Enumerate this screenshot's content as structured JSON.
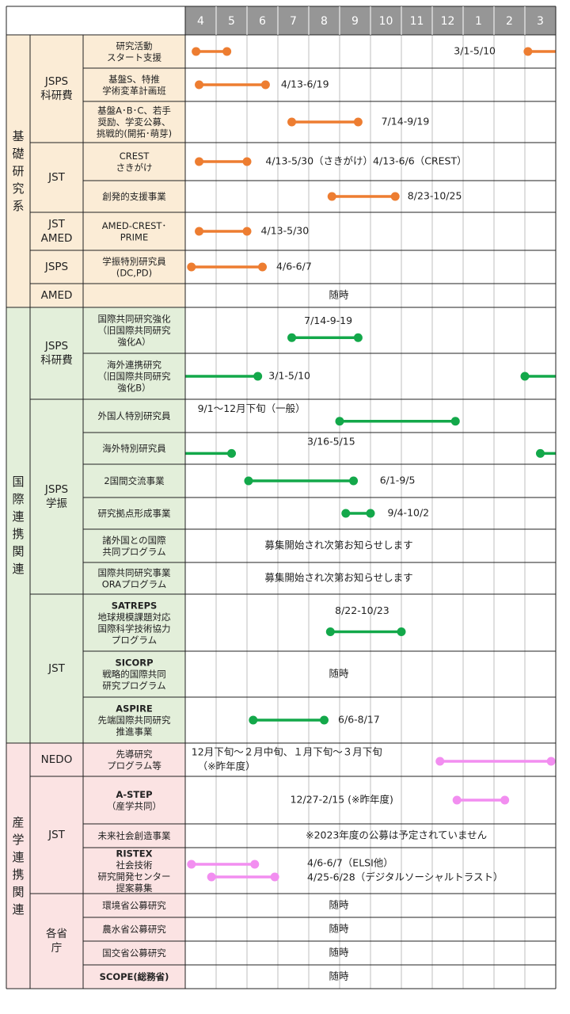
{
  "chart_data": {
    "type": "gantt",
    "months": [
      "4",
      "5",
      "6",
      "7",
      "8",
      "9",
      "10",
      "11",
      "12",
      "1",
      "2",
      "3"
    ],
    "colors": {
      "basic_bg": "#fbecd6",
      "intl_bg": "#e3efda",
      "industry_bg": "#fbe3e3",
      "header_bg": "#969696",
      "basic_bar": "#ed7d31",
      "intl_bar": "#13a84a",
      "industry_bar": "#f28ef0",
      "grid": "#bfbfbf",
      "border": "#222222"
    },
    "sections": [
      {
        "id": "basic",
        "label": "基礎研究系",
        "color": "basic",
        "groups": [
          {
            "label": "JSPS\n科研費",
            "rows": [
              {
                "label": "研究活動\nスタート支援",
                "bars": [
                  {
                    "start": 0.35,
                    "end": 1.35
                  },
                  {
                    "start": 11.1,
                    "end": 12.0
                  }
                ],
                "notes": [
                  {
                    "text": "3/1-5/10",
                    "at": 8.7
                  }
                ]
              },
              {
                "label": "基盤S、特推\n学術変革計画班",
                "bars": [
                  {
                    "start": 0.45,
                    "end": 2.6
                  }
                ],
                "notes": [
                  {
                    "text": "4/13-6/19",
                    "at": 3.1
                  }
                ]
              },
              {
                "label": "基盤A･B･C、若手\n奨励、学変公募、\n挑戦的(開拓･萌芽)",
                "bars": [
                  {
                    "start": 3.45,
                    "end": 5.6
                  }
                ],
                "notes": [
                  {
                    "text": "7/14-9/19",
                    "at": 6.35
                  }
                ]
              }
            ]
          },
          {
            "label": "JST",
            "rows": [
              {
                "label": "CREST\nさきがけ",
                "bars": [
                  {
                    "start": 0.45,
                    "end": 2.0
                  }
                ],
                "notes": [
                  {
                    "text": "4/13-5/30（さきがけ）4/13-6/6（CREST）",
                    "at": 2.6
                  }
                ]
              },
              {
                "label": "創発的支援事業",
                "bars": [
                  {
                    "start": 4.75,
                    "end": 6.8
                  }
                ],
                "notes": [
                  {
                    "text": "8/23-10/25",
                    "at": 7.2
                  }
                ]
              }
            ]
          },
          {
            "label": "JST\nAMED",
            "rows": [
              {
                "label": "AMED-CREST･\nPRIME",
                "bars": [
                  {
                    "start": 0.45,
                    "end": 2.0
                  }
                ],
                "notes": [
                  {
                    "text": "4/13-5/30",
                    "at": 2.45
                  }
                ]
              }
            ]
          },
          {
            "label": "JSPS",
            "rows": [
              {
                "label": "学振特別研究員\n(DC,PD)",
                "bars": [
                  {
                    "start": 0.2,
                    "end": 2.5
                  }
                ],
                "notes": [
                  {
                    "text": "4/6-6/7",
                    "at": 2.95
                  }
                ]
              }
            ]
          },
          {
            "label": "AMED",
            "rows": [
              {
                "label": "AMED",
                "bars": [],
                "notes": [
                  {
                    "text": "随時",
                    "center": true
                  }
                ],
                "nolabel": true
              }
            ]
          }
        ]
      },
      {
        "id": "intl",
        "label": "国際連携関連",
        "color": "intl",
        "groups": [
          {
            "label": "JSPS\n科研費",
            "rows": [
              {
                "label": "国際共同研究強化\n（旧国際共同研究\n強化A）",
                "bars": [
                  {
                    "start": 3.45,
                    "end": 5.6
                  }
                ],
                "notes": [
                  {
                    "text": "7/14-9-19",
                    "at": 3.85,
                    "above": true
                  }
                ]
              },
              {
                "label": "海外連携研究\n（旧国際共同研究\n強化B）",
                "bars": [
                  {
                    "start": 0.0,
                    "end": 2.35
                  },
                  {
                    "start": 11.0,
                    "end": 12.0
                  }
                ],
                "notes": [
                  {
                    "text": "3/1-5/10",
                    "at": 2.7
                  }
                ]
              }
            ]
          },
          {
            "label": "JSPS\n学振",
            "rows": [
              {
                "label": "外国人特別研究員",
                "bars": [
                  {
                    "start": 5.0,
                    "end": 8.75
                  }
                ],
                "notes": [
                  {
                    "text": "9/1～12月下旬（一般）",
                    "at": 0.4,
                    "above": true
                  }
                ]
              },
              {
                "label": "海外特別研究員",
                "bars": [
                  {
                    "start": 0.0,
                    "end": 1.5
                  },
                  {
                    "start": 11.5,
                    "end": 12.0
                  }
                ],
                "notes": [
                  {
                    "text": "3/16-5/15",
                    "at": 3.95,
                    "above": true
                  }
                ]
              },
              {
                "label": "2国間交流事業",
                "bars": [
                  {
                    "start": 2.05,
                    "end": 5.45
                  }
                ],
                "notes": [
                  {
                    "text": "6/1-9/5",
                    "at": 6.3
                  }
                ]
              },
              {
                "label": "研究拠点形成事業",
                "bars": [
                  {
                    "start": 5.2,
                    "end": 6.0
                  }
                ],
                "notes": [
                  {
                    "text": "9/4-10/2",
                    "at": 6.55
                  }
                ]
              },
              {
                "label": "諸外国との国際\n共同プログラム",
                "bars": [],
                "notes": [
                  {
                    "text": "募集開始され次第お知らせします",
                    "center": true
                  }
                ]
              },
              {
                "label": "国際共同研究事業\nORAプログラム",
                "bars": [],
                "notes": [
                  {
                    "text": "募集開始され次第お知らせします",
                    "center": true
                  }
                ]
              }
            ]
          },
          {
            "label": "JST",
            "rows": [
              {
                "label": "SATREPS\n地球規模課題対応\n国際科学技術協力\nプログラム",
                "bars": [
                  {
                    "start": 4.7,
                    "end": 7.0
                  }
                ],
                "notes": [
                  {
                    "text": "8/22-10/23",
                    "at": 4.85,
                    "above": true
                  }
                ],
                "bold_first": true
              },
              {
                "label": "SICORP\n戦略的国際共同\n研究プログラム",
                "bars": [],
                "notes": [
                  {
                    "text": "随時",
                    "center": true
                  }
                ],
                "bold_first": true
              },
              {
                "label": "ASPIRE\n先端国際共同研究\n推進事業",
                "bars": [
                  {
                    "start": 2.2,
                    "end": 4.5
                  }
                ],
                "notes": [
                  {
                    "text": "6/6-8/17",
                    "at": 4.95
                  }
                ],
                "bold_first": true
              }
            ]
          }
        ]
      },
      {
        "id": "industry",
        "label": "産学連携関連",
        "color": "industry",
        "groups": [
          {
            "label": "NEDO",
            "rows": [
              {
                "label": "先導研究\nプログラム等",
                "bars": [
                  {
                    "start": 8.25,
                    "end": 11.85
                  }
                ],
                "notes": [
                  {
                    "text": "12月下旬～２月中旬、１月下旬～３月下旬",
                    "at": 0.2,
                    "above": true
                  },
                  {
                    "text": "（※昨年度）",
                    "at": 0.4,
                    "below": true
                  }
                ]
              }
            ]
          },
          {
            "label": "JST",
            "rows": [
              {
                "label": "A-STEP\n（産学共同）",
                "bars": [
                  {
                    "start": 8.8,
                    "end": 10.35
                  }
                ],
                "notes": [
                  {
                    "text": "12/27-2/15 (※昨年度)",
                    "at": 3.4
                  }
                ],
                "bold_first": true
              },
              {
                "label": "未来社会創造事業",
                "bars": [],
                "notes": [
                  {
                    "text": "※2023年度の公募は予定されていません",
                    "at": 3.9
                  }
                ]
              },
              {
                "label": "RISTEX\n社会技術\n研究開発センター\n提案募集",
                "bars": [
                  {
                    "start": 0.2,
                    "end": 2.25
                  },
                  {
                    "start": 0.85,
                    "end": 2.9
                  }
                ],
                "notes": [
                  {
                    "text": "4/6-6/7（ELSI他）",
                    "at": 3.95,
                    "line": 0
                  },
                  {
                    "text": "4/25-6/28（デジタルソーシャルトラスト）",
                    "at": 3.95,
                    "line": 1
                  }
                ],
                "bold_first": true
              }
            ]
          },
          {
            "label": "各省\n庁",
            "rows": [
              {
                "label": "環境省公募研究",
                "bars": [],
                "notes": [
                  {
                    "text": "随時",
                    "center": true
                  }
                ]
              },
              {
                "label": "農水省公募研究",
                "bars": [],
                "notes": [
                  {
                    "text": "随時",
                    "center": true
                  }
                ]
              },
              {
                "label": "国交省公募研究",
                "bars": [],
                "notes": [
                  {
                    "text": "随時",
                    "center": true
                  }
                ]
              },
              {
                "label": "SCOPE(総務省)",
                "bars": [],
                "notes": [
                  {
                    "text": "随時",
                    "center": true
                  }
                ],
                "bold_first": true
              }
            ]
          }
        ]
      }
    ]
  }
}
